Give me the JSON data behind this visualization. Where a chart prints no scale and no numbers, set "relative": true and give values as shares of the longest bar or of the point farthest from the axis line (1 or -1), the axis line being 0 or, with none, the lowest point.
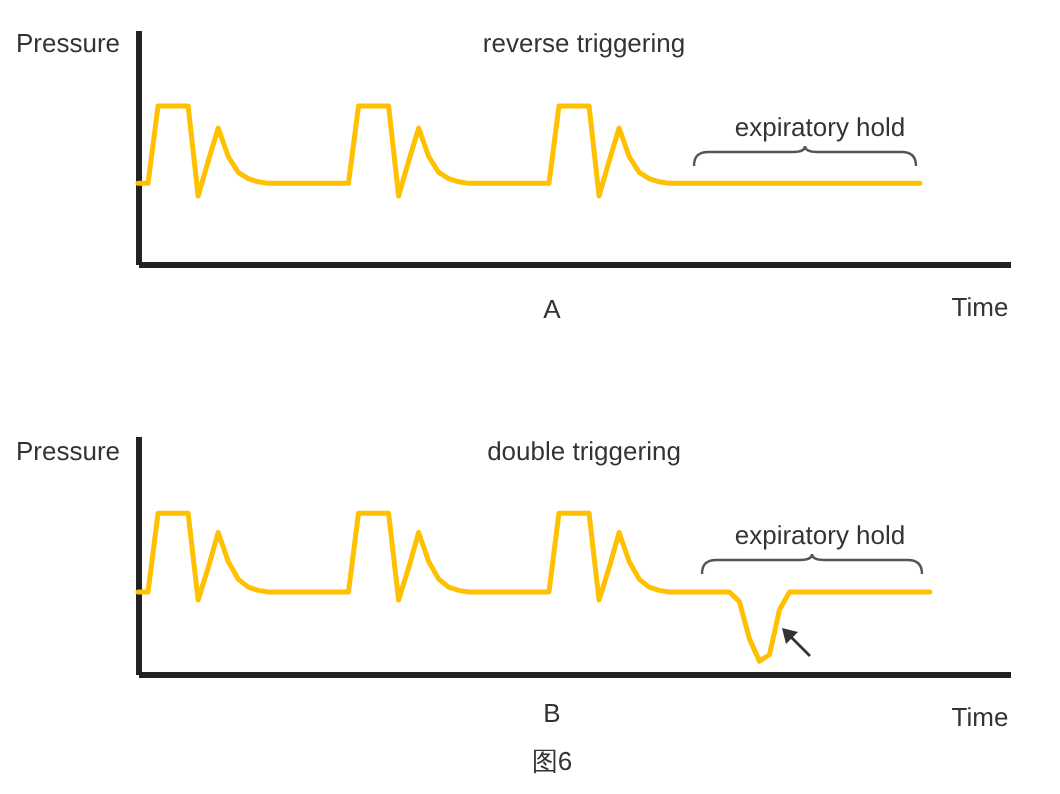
{
  "chart_data": [
    {
      "type": "line",
      "title": "reverse triggering",
      "xlabel": "Time",
      "ylabel": "Pressure",
      "relative": true,
      "categories": [
        null,
        null,
        null,
        null,
        null,
        null,
        null,
        null,
        null,
        null,
        null,
        null,
        null,
        null,
        null,
        null,
        null,
        null,
        null,
        null,
        null,
        null,
        null,
        null,
        null,
        null,
        null,
        null,
        null,
        null,
        null,
        null,
        null,
        null,
        null,
        null,
        null,
        null,
        null,
        null,
        null,
        null,
        null,
        null,
        null,
        null,
        null,
        null,
        null,
        null,
        null,
        null,
        null,
        null,
        null,
        null,
        null,
        null,
        null,
        null,
        null,
        null,
        null,
        null,
        null,
        null,
        null,
        null,
        null,
        null,
        null,
        null,
        null,
        null,
        null,
        null,
        null,
        null,
        null,
        null,
        null,
        null,
        null,
        null,
        null,
        null,
        null,
        null
      ],
      "series": [
        {
          "color": "#ffc000",
          "values": [
            0.51,
            0.51,
            1,
            1,
            1,
            1,
            0.43,
            0.65,
            0.86,
            0.68,
            0.58,
            0.54,
            0.52,
            0.51,
            0.51,
            0.51,
            0.51,
            0.51,
            0.51,
            0.51,
            0.51,
            0.51,
            1,
            1,
            1,
            1,
            0.43,
            0.65,
            0.86,
            0.68,
            0.58,
            0.54,
            0.52,
            0.51,
            0.51,
            0.51,
            0.51,
            0.51,
            0.51,
            0.51,
            0.51,
            0.51,
            1,
            1,
            1,
            1,
            0.43,
            0.65,
            0.86,
            0.68,
            0.58,
            0.54,
            0.52,
            0.51,
            0.51,
            0.51,
            0.51,
            0.51,
            0.51,
            0.51,
            0.51,
            0.51,
            0.51,
            0.51,
            0.51,
            0.51,
            0.51,
            0.51,
            0.51,
            0.51,
            0.51,
            0.51,
            0.51,
            0.51,
            0.51,
            0.51,
            0.51,
            0.51,
            0.51,
            null,
            null,
            null,
            null,
            null,
            null,
            null,
            null,
            null
          ]
        }
      ],
      "annotations": [
        "expiratory hold",
        "A"
      ]
    },
    {
      "type": "line",
      "title": "double triggering",
      "xlabel": "Time",
      "ylabel": "Pressure",
      "relative": true,
      "categories": [
        null,
        null,
        null,
        null,
        null,
        null,
        null,
        null,
        null,
        null,
        null,
        null,
        null,
        null,
        null,
        null,
        null,
        null,
        null,
        null,
        null,
        null,
        null,
        null,
        null,
        null,
        null,
        null,
        null,
        null,
        null,
        null,
        null,
        null,
        null,
        null,
        null,
        null,
        null,
        null,
        null,
        null,
        null,
        null,
        null,
        null,
        null,
        null,
        null,
        null,
        null,
        null,
        null,
        null,
        null,
        null,
        null,
        null,
        null,
        null,
        null,
        null,
        null,
        null,
        null,
        null,
        null,
        null,
        null,
        null,
        null,
        null,
        null,
        null,
        null,
        null,
        null,
        null,
        null,
        null,
        null,
        null,
        null,
        null,
        null,
        null,
        null,
        null
      ],
      "series": [
        {
          "color": "#ffc000",
          "values": [
            0.51,
            0.51,
            1,
            1,
            1,
            1,
            0.46,
            0.66,
            0.88,
            0.7,
            0.59,
            0.54,
            0.52,
            0.51,
            0.51,
            0.51,
            0.51,
            0.51,
            0.51,
            0.51,
            0.51,
            0.51,
            1,
            1,
            1,
            1,
            0.46,
            0.66,
            0.88,
            0.7,
            0.59,
            0.54,
            0.52,
            0.51,
            0.51,
            0.51,
            0.51,
            0.51,
            0.51,
            0.51,
            0.51,
            0.51,
            1,
            1,
            1,
            1,
            0.46,
            0.66,
            0.88,
            0.7,
            0.59,
            0.54,
            0.52,
            0.51,
            0.51,
            0.51,
            0.51,
            0.51,
            0.51,
            0.51,
            0.45,
            0.22,
            0.08,
            0.12,
            0.4,
            0.51,
            0.51,
            0.51,
            0.51,
            0.51,
            0.51,
            0.51,
            0.51,
            0.51,
            0.51,
            0.51,
            0.51,
            0.51,
            0.51,
            0.51,
            null,
            null,
            null,
            null,
            null,
            null,
            null,
            null
          ]
        }
      ],
      "annotations": [
        "expiratory hold",
        "B",
        "图6"
      ]
    }
  ]
}
